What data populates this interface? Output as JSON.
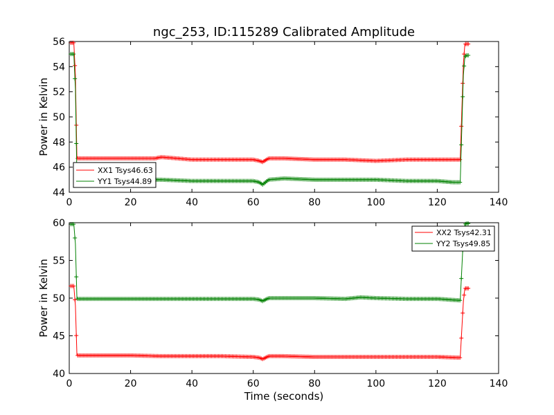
{
  "chart_data": {
    "title": "ngc_253, ID:115289 Calibrated Amplitude",
    "xlabel": "Time (seconds)",
    "type": "line",
    "panels": [
      {
        "id": "top",
        "ylabel": "Power in Kelvin",
        "xlim": [
          0,
          140
        ],
        "ylim": [
          44,
          56
        ],
        "xticks": [
          0,
          20,
          40,
          60,
          80,
          100,
          120,
          140
        ],
        "yticks": [
          44,
          46,
          48,
          50,
          52,
          54,
          56
        ],
        "grid": false,
        "legend_position": "lower-left",
        "series": [
          {
            "name": "XX1 Tsys46.63",
            "color": "#ff0000",
            "x": [
              0.5,
              1.5,
              2.0,
              2.5,
              10,
              20,
              28,
              30,
              35,
              40,
              50,
              60,
              62,
              63,
              65,
              70,
              80,
              90,
              100,
              110,
              120,
              127.5,
              128.5,
              129,
              129.5,
              130.5
            ],
            "y": [
              55.9,
              55.9,
              53.3,
              46.7,
              46.7,
              46.7,
              46.7,
              46.8,
              46.7,
              46.6,
              46.6,
              46.6,
              46.5,
              46.4,
              46.7,
              46.7,
              46.6,
              46.6,
              46.5,
              46.6,
              46.6,
              46.6,
              54.2,
              55.8,
              55.8,
              55.8
            ]
          },
          {
            "name": "YY1 Tsys44.89",
            "color": "#008000",
            "x": [
              0.5,
              1.5,
              2.0,
              2.5,
              10,
              20,
              30,
              40,
              50,
              60,
              62,
              63,
              65,
              70,
              80,
              90,
              100,
              110,
              120,
              125,
              127.5,
              128.5,
              129,
              129.5,
              130.5
            ],
            "y": [
              55.0,
              55.0,
              52.2,
              45.0,
              45.0,
              45.0,
              45.0,
              44.9,
              44.9,
              44.9,
              44.8,
              44.6,
              45.0,
              45.1,
              45.0,
              45.0,
              45.0,
              44.9,
              44.9,
              44.8,
              44.8,
              53.3,
              54.8,
              54.9,
              54.9
            ]
          }
        ]
      },
      {
        "id": "bottom",
        "ylabel": "Power in Kelvin",
        "xlabel": "Time (seconds)",
        "xlim": [
          0,
          140
        ],
        "ylim": [
          40,
          60
        ],
        "xticks": [
          0,
          20,
          40,
          60,
          80,
          100,
          120,
          140
        ],
        "yticks": [
          40,
          45,
          50,
          55,
          60
        ],
        "grid": false,
        "legend_position": "top-right",
        "series": [
          {
            "name": "XX2 Tsys42.31",
            "color": "#ff0000",
            "x": [
              0.5,
              1.5,
              2.0,
              2.5,
              10,
              20,
              30,
              40,
              50,
              60,
              62,
              63,
              65,
              70,
              80,
              90,
              100,
              110,
              120,
              127.5,
              128.5,
              129,
              129.5,
              130.5
            ],
            "y": [
              51.6,
              51.6,
              49.0,
              42.4,
              42.4,
              42.4,
              42.3,
              42.3,
              42.3,
              42.2,
              42.1,
              41.9,
              42.3,
              42.3,
              42.2,
              42.2,
              42.2,
              42.2,
              42.2,
              42.1,
              49.5,
              51.3,
              51.3,
              51.3
            ]
          },
          {
            "name": "YY2 Tsys49.85",
            "color": "#008000",
            "x": [
              0.5,
              1.5,
              2.0,
              2.5,
              10,
              20,
              30,
              40,
              50,
              60,
              62,
              63,
              65,
              70,
              80,
              90,
              95,
              100,
              110,
              120,
              127.5,
              128.5,
              129,
              129.5,
              130.5
            ],
            "y": [
              59.8,
              59.8,
              57.2,
              49.9,
              49.9,
              49.9,
              49.9,
              49.9,
              49.9,
              49.9,
              49.8,
              49.6,
              50.0,
              50.0,
              50.0,
              49.9,
              50.1,
              50.0,
              49.9,
              49.9,
              49.7,
              58.0,
              59.8,
              59.9,
              59.9
            ]
          }
        ]
      }
    ]
  }
}
